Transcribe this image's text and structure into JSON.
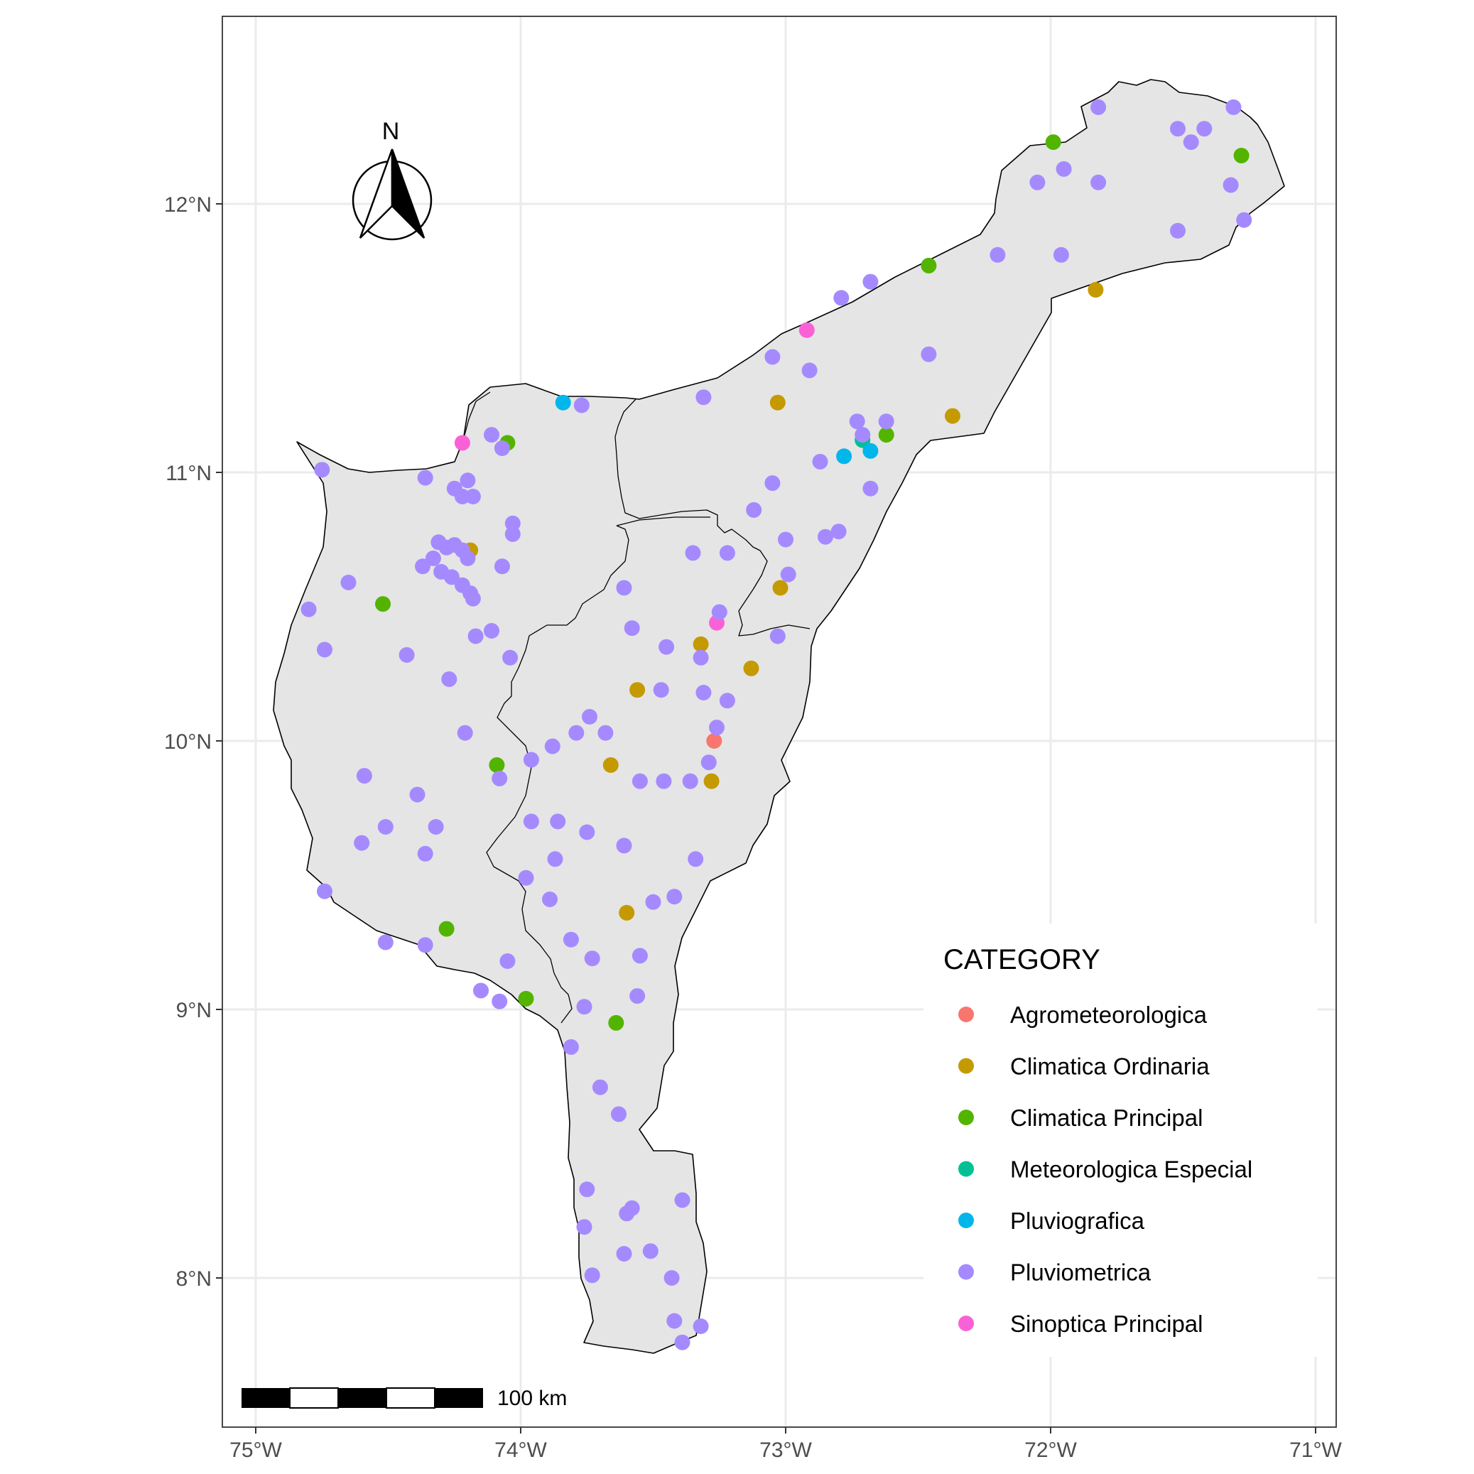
{
  "map": {
    "lon_range": [
      -75.13,
      -71.08
    ],
    "lat_range": [
      7.45,
      12.7
    ],
    "x_ticks": [
      {
        "lon": -75,
        "label": "75°W"
      },
      {
        "lon": -74,
        "label": "74°W"
      },
      {
        "lon": -73,
        "label": "73°W"
      },
      {
        "lon": -72,
        "label": "72°W"
      },
      {
        "lon": -71,
        "label": "71°W"
      }
    ],
    "y_ticks": [
      {
        "lat": 12,
        "label": "12°N"
      },
      {
        "lat": 11,
        "label": "11°N"
      },
      {
        "lat": 10,
        "label": "10°N"
      },
      {
        "lat": 9,
        "label": "9°N"
      },
      {
        "lat": 8,
        "label": "8°N"
      }
    ],
    "grid": true,
    "land_color": "#e5e5e5",
    "border_color": "#000000",
    "north_arrow": {
      "label": "N"
    },
    "scale_bar": {
      "label": "100 km"
    }
  },
  "legend": {
    "title": "CATEGORY",
    "position": "bottom-right",
    "items": [
      {
        "name": "Agrometeorologica",
        "color": "#F8766D"
      },
      {
        "name": "Climatica Ordinaria",
        "color": "#C49A00"
      },
      {
        "name": "Climatica Principal",
        "color": "#53B400"
      },
      {
        "name": "Meteorologica Especial",
        "color": "#00C094"
      },
      {
        "name": "Pluviografica",
        "color": "#00B6EB"
      },
      {
        "name": "Pluviometrica",
        "color": "#A58AFF"
      },
      {
        "name": "Sinoptica Principal",
        "color": "#FB61D7"
      }
    ]
  },
  "stations": [
    [
      -73.27,
      10.0,
      0
    ],
    [
      -74.19,
      10.71,
      1
    ],
    [
      -73.03,
      11.26,
      1
    ],
    [
      -73.02,
      10.57,
      1
    ],
    [
      -72.37,
      11.21,
      1
    ],
    [
      -71.83,
      11.68,
      1
    ],
    [
      -73.32,
      10.36,
      1
    ],
    [
      -73.13,
      10.27,
      1
    ],
    [
      -73.56,
      10.19,
      1
    ],
    [
      -73.66,
      9.91,
      1
    ],
    [
      -73.28,
      9.85,
      1
    ],
    [
      -73.6,
      9.36,
      1
    ],
    [
      -74.05,
      11.11,
      2
    ],
    [
      -72.46,
      11.77,
      2
    ],
    [
      -71.99,
      12.23,
      2
    ],
    [
      -71.28,
      12.18,
      2
    ],
    [
      -72.62,
      11.14,
      2
    ],
    [
      -74.52,
      10.51,
      2
    ],
    [
      -74.09,
      9.91,
      2
    ],
    [
      -74.28,
      9.3,
      2
    ],
    [
      -73.98,
      9.04,
      2
    ],
    [
      -73.64,
      8.95,
      2
    ],
    [
      -72.71,
      11.12,
      3
    ],
    [
      -73.84,
      11.26,
      4
    ],
    [
      -72.78,
      11.06,
      4
    ],
    [
      -72.68,
      11.08,
      4
    ],
    [
      -74.22,
      11.11,
      6
    ],
    [
      -72.92,
      11.53,
      6
    ],
    [
      -73.26,
      10.44,
      6
    ],
    [
      -71.82,
      12.36,
      5
    ],
    [
      -71.31,
      12.36,
      5
    ],
    [
      -71.52,
      12.28,
      5
    ],
    [
      -71.42,
      12.28,
      5
    ],
    [
      -71.47,
      12.23,
      5
    ],
    [
      -71.95,
      12.13,
      5
    ],
    [
      -71.82,
      12.08,
      5
    ],
    [
      -72.05,
      12.08,
      5
    ],
    [
      -71.32,
      12.07,
      5
    ],
    [
      -71.27,
      11.94,
      5
    ],
    [
      -71.52,
      11.9,
      5
    ],
    [
      -72.2,
      11.81,
      5
    ],
    [
      -71.96,
      11.81,
      5
    ],
    [
      -72.68,
      11.71,
      5
    ],
    [
      -72.79,
      11.65,
      5
    ],
    [
      -73.05,
      11.43,
      5
    ],
    [
      -72.91,
      11.38,
      5
    ],
    [
      -72.46,
      11.44,
      5
    ],
    [
      -73.31,
      11.28,
      5
    ],
    [
      -73.77,
      11.25,
      5
    ],
    [
      -72.62,
      11.19,
      5
    ],
    [
      -72.73,
      11.19,
      5
    ],
    [
      -72.71,
      11.14,
      5
    ],
    [
      -72.87,
      11.04,
      5
    ],
    [
      -72.68,
      10.94,
      5
    ],
    [
      -73.05,
      10.96,
      5
    ],
    [
      -73.12,
      10.86,
      5
    ],
    [
      -73.0,
      10.75,
      5
    ],
    [
      -72.85,
      10.76,
      5
    ],
    [
      -72.8,
      10.78,
      5
    ],
    [
      -73.22,
      10.7,
      5
    ],
    [
      -73.35,
      10.7,
      5
    ],
    [
      -72.99,
      10.62,
      5
    ],
    [
      -73.25,
      10.48,
      5
    ],
    [
      -73.03,
      10.39,
      5
    ],
    [
      -74.11,
      11.14,
      5
    ],
    [
      -74.07,
      11.09,
      5
    ],
    [
      -74.75,
      11.01,
      5
    ],
    [
      -74.36,
      10.98,
      5
    ],
    [
      -74.2,
      10.97,
      5
    ],
    [
      -74.25,
      10.94,
      5
    ],
    [
      -74.18,
      10.91,
      5
    ],
    [
      -74.22,
      10.91,
      5
    ],
    [
      -74.03,
      10.81,
      5
    ],
    [
      -74.03,
      10.77,
      5
    ],
    [
      -74.31,
      10.74,
      5
    ],
    [
      -74.25,
      10.73,
      5
    ],
    [
      -74.28,
      10.72,
      5
    ],
    [
      -74.22,
      10.71,
      5
    ],
    [
      -74.33,
      10.68,
      5
    ],
    [
      -74.2,
      10.68,
      5
    ],
    [
      -74.37,
      10.65,
      5
    ],
    [
      -74.3,
      10.63,
      5
    ],
    [
      -74.26,
      10.61,
      5
    ],
    [
      -74.22,
      10.58,
      5
    ],
    [
      -74.19,
      10.55,
      5
    ],
    [
      -74.18,
      10.53,
      5
    ],
    [
      -74.07,
      10.65,
      5
    ],
    [
      -74.65,
      10.59,
      5
    ],
    [
      -74.8,
      10.49,
      5
    ],
    [
      -74.74,
      10.34,
      5
    ],
    [
      -74.43,
      10.32,
      5
    ],
    [
      -74.11,
      10.41,
      5
    ],
    [
      -74.17,
      10.39,
      5
    ],
    [
      -74.04,
      10.31,
      5
    ],
    [
      -74.27,
      10.23,
      5
    ],
    [
      -74.21,
      10.03,
      5
    ],
    [
      -73.58,
      10.42,
      5
    ],
    [
      -73.61,
      10.57,
      5
    ],
    [
      -73.45,
      10.35,
      5
    ],
    [
      -73.32,
      10.31,
      5
    ],
    [
      -73.47,
      10.19,
      5
    ],
    [
      -73.31,
      10.18,
      5
    ],
    [
      -73.22,
      10.15,
      5
    ],
    [
      -73.26,
      10.05,
      5
    ],
    [
      -73.74,
      10.09,
      5
    ],
    [
      -73.68,
      10.03,
      5
    ],
    [
      -73.79,
      10.03,
      5
    ],
    [
      -73.88,
      9.98,
      5
    ],
    [
      -73.96,
      9.93,
      5
    ],
    [
      -74.08,
      9.86,
      5
    ],
    [
      -73.29,
      9.92,
      5
    ],
    [
      -73.55,
      9.85,
      5
    ],
    [
      -73.46,
      9.85,
      5
    ],
    [
      -73.36,
      9.85,
      5
    ],
    [
      -74.59,
      9.87,
      5
    ],
    [
      -74.39,
      9.8,
      5
    ],
    [
      -74.51,
      9.68,
      5
    ],
    [
      -74.32,
      9.68,
      5
    ],
    [
      -74.6,
      9.62,
      5
    ],
    [
      -74.36,
      9.58,
      5
    ],
    [
      -73.96,
      9.7,
      5
    ],
    [
      -73.86,
      9.7,
      5
    ],
    [
      -73.75,
      9.66,
      5
    ],
    [
      -73.61,
      9.61,
      5
    ],
    [
      -73.87,
      9.56,
      5
    ],
    [
      -73.34,
      9.56,
      5
    ],
    [
      -73.98,
      9.49,
      5
    ],
    [
      -73.89,
      9.41,
      5
    ],
    [
      -73.42,
      9.42,
      5
    ],
    [
      -73.5,
      9.4,
      5
    ],
    [
      -74.74,
      9.44,
      5
    ],
    [
      -74.51,
      9.25,
      5
    ],
    [
      -74.36,
      9.24,
      5
    ],
    [
      -73.81,
      9.26,
      5
    ],
    [
      -73.73,
      9.19,
      5
    ],
    [
      -73.55,
      9.2,
      5
    ],
    [
      -74.05,
      9.18,
      5
    ],
    [
      -74.15,
      9.07,
      5
    ],
    [
      -74.08,
      9.03,
      5
    ],
    [
      -73.56,
      9.05,
      5
    ],
    [
      -73.76,
      9.01,
      5
    ],
    [
      -73.81,
      8.86,
      5
    ],
    [
      -73.7,
      8.71,
      5
    ],
    [
      -73.63,
      8.61,
      5
    ],
    [
      -73.75,
      8.33,
      5
    ],
    [
      -73.39,
      8.29,
      5
    ],
    [
      -73.58,
      8.26,
      5
    ],
    [
      -73.6,
      8.24,
      5
    ],
    [
      -73.76,
      8.19,
      5
    ],
    [
      -73.51,
      8.1,
      5
    ],
    [
      -73.61,
      8.09,
      5
    ],
    [
      -73.73,
      8.01,
      5
    ],
    [
      -73.43,
      8.0,
      5
    ],
    [
      -73.42,
      7.84,
      5
    ],
    [
      -73.32,
      7.82,
      5
    ],
    [
      -73.39,
      7.76,
      5
    ]
  ]
}
